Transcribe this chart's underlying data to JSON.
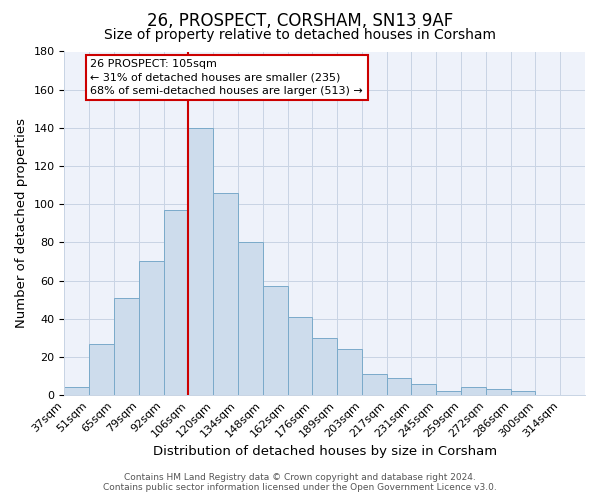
{
  "title": "26, PROSPECT, CORSHAM, SN13 9AF",
  "subtitle": "Size of property relative to detached houses in Corsham",
  "xlabel": "Distribution of detached houses by size in Corsham",
  "ylabel": "Number of detached properties",
  "bar_labels": [
    "37sqm",
    "51sqm",
    "65sqm",
    "79sqm",
    "92sqm",
    "106sqm",
    "120sqm",
    "134sqm",
    "148sqm",
    "162sqm",
    "176sqm",
    "189sqm",
    "203sqm",
    "217sqm",
    "231sqm",
    "245sqm",
    "259sqm",
    "272sqm",
    "286sqm",
    "300sqm",
    "314sqm"
  ],
  "bar_heights": [
    4,
    27,
    51,
    70,
    97,
    140,
    106,
    80,
    57,
    41,
    30,
    24,
    11,
    9,
    6,
    2,
    4,
    3,
    2,
    0,
    0
  ],
  "bar_color": "#cddcec",
  "bar_edge_color": "#7aaaca",
  "vline_index": 5,
  "vline_color": "#cc0000",
  "annotation_line1": "26 PROSPECT: 105sqm",
  "annotation_line2": "← 31% of detached houses are smaller (235)",
  "annotation_line3": "68% of semi-detached houses are larger (513) →",
  "annotation_box_edge": "#cc0000",
  "ylim": [
    0,
    180
  ],
  "yticks": [
    0,
    20,
    40,
    60,
    80,
    100,
    120,
    140,
    160,
    180
  ],
  "grid_color": "#c8d4e4",
  "background_color": "#e8eef8",
  "plot_bg_color": "#eef2fa",
  "footer_line1": "Contains HM Land Registry data © Crown copyright and database right 2024.",
  "footer_line2": "Contains public sector information licensed under the Open Government Licence v3.0.",
  "title_fontsize": 12,
  "subtitle_fontsize": 10,
  "axis_label_fontsize": 9.5,
  "tick_fontsize": 8,
  "annotation_fontsize": 8,
  "footer_fontsize": 6.5
}
